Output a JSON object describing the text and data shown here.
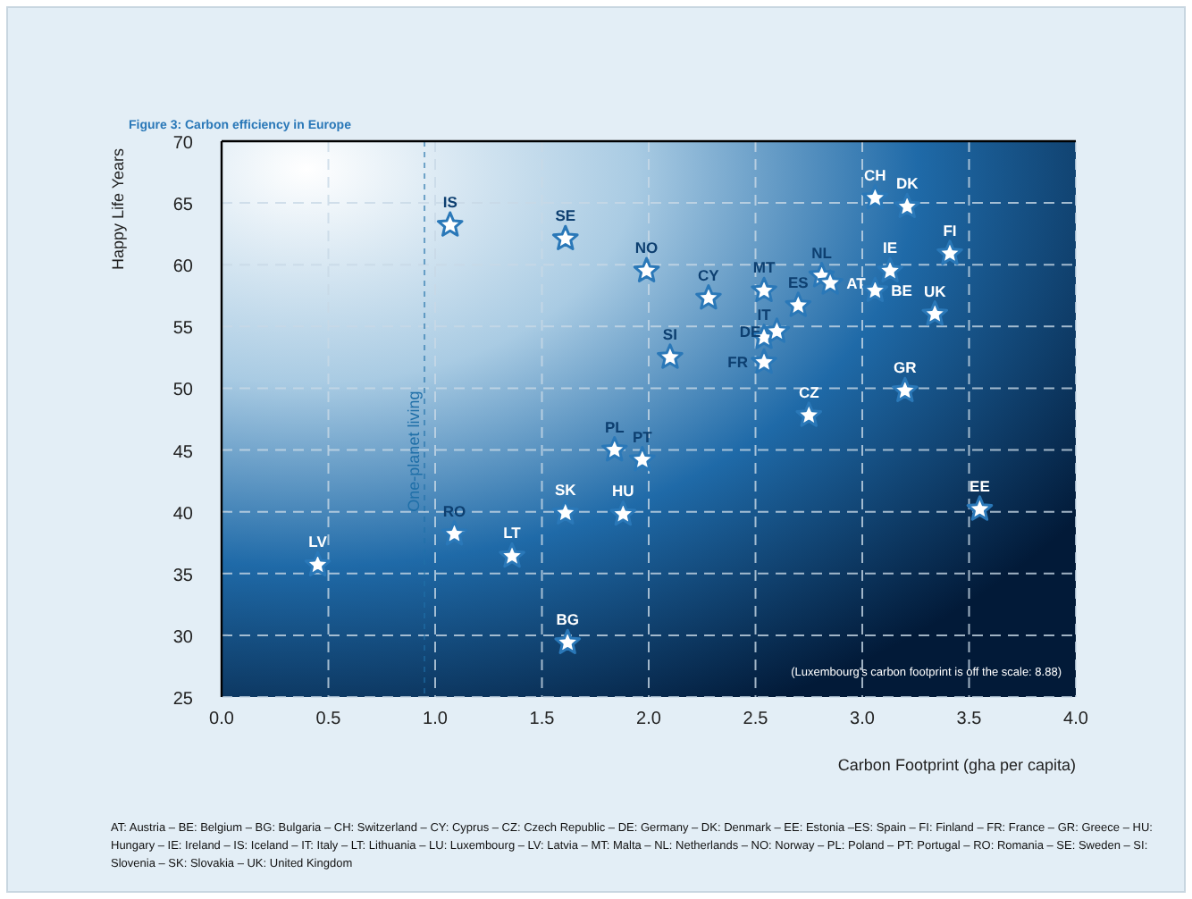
{
  "chart_data": {
    "type": "scatter",
    "title": "Figure 3: Carbon efficiency in Europe",
    "xlabel": "Carbon Footprint (gha per capita)",
    "ylabel": "Happy Life Years",
    "xlim": [
      0,
      4
    ],
    "ylim": [
      25,
      70
    ],
    "xticks": [
      {
        "value": 0,
        "label": "0.0"
      },
      {
        "value": 0.5,
        "label": "0.5"
      },
      {
        "value": 1,
        "label": "1.0"
      },
      {
        "value": 1.5,
        "label": "1.5"
      },
      {
        "value": 2,
        "label": "2.0"
      },
      {
        "value": 2.5,
        "label": "2.5"
      },
      {
        "value": 3,
        "label": "3.0"
      },
      {
        "value": 3.5,
        "label": "3.5"
      },
      {
        "value": 4,
        "label": "4.0"
      }
    ],
    "yticks": [
      25,
      30,
      35,
      40,
      45,
      50,
      55,
      60,
      65,
      70
    ],
    "grid": true,
    "marker": "star",
    "series": [
      {
        "color": "#2a78b8",
        "x": [
          1.07,
          1.61,
          1.99,
          2.28,
          2.54,
          2.7,
          2.81,
          2.85,
          3.06,
          3.13,
          3.06,
          3.21,
          3.41,
          3.34,
          2.54,
          2.6,
          2.54,
          2.1,
          3.2,
          2.75,
          0.45,
          1.09,
          1.36,
          1.61,
          1.62,
          1.84,
          1.88,
          1.97,
          3.55
        ],
        "values": [
          63.2,
          62.1,
          59.5,
          57.3,
          57.9,
          56.7,
          59.1,
          58.5,
          57.9,
          59.5,
          65.4,
          64.7,
          60.9,
          56.0,
          54.1,
          54.6,
          52.1,
          52.5,
          49.8,
          47.8,
          35.7,
          38.2,
          36.4,
          39.9,
          29.4,
          45.0,
          39.8,
          44.2,
          40.2
        ]
      }
    ],
    "ref_lines": [
      {
        "axis": "x",
        "value": 0.95,
        "label": "One-planet living",
        "color": "#1f6fa8",
        "line_style": "dashed"
      }
    ],
    "annotations": [
      {
        "text": "IS",
        "x": 1.07,
        "y": 63.2
      },
      {
        "text": "SE",
        "x": 1.61,
        "y": 62.1
      },
      {
        "text": "NO",
        "x": 1.99,
        "y": 59.5
      },
      {
        "text": "CY",
        "x": 2.28,
        "y": 57.3
      },
      {
        "text": "MT",
        "x": 2.54,
        "y": 57.9
      },
      {
        "text": "ES",
        "x": 2.7,
        "y": 56.7
      },
      {
        "text": "NL",
        "x": 2.81,
        "y": 59.1
      },
      {
        "text": "AT",
        "x": 2.85,
        "y": 58.5
      },
      {
        "text": "BE",
        "x": 3.06,
        "y": 57.9
      },
      {
        "text": "IE",
        "x": 3.13,
        "y": 59.5
      },
      {
        "text": "CH",
        "x": 3.06,
        "y": 65.4
      },
      {
        "text": "DK",
        "x": 3.21,
        "y": 64.7
      },
      {
        "text": "FI",
        "x": 3.41,
        "y": 60.9
      },
      {
        "text": "UK",
        "x": 3.34,
        "y": 56.0
      },
      {
        "text": "IT",
        "x": 2.54,
        "y": 54.1
      },
      {
        "text": "DE",
        "x": 2.6,
        "y": 54.6
      },
      {
        "text": "FR",
        "x": 2.54,
        "y": 52.1
      },
      {
        "text": "SI",
        "x": 2.1,
        "y": 52.5
      },
      {
        "text": "GR",
        "x": 3.2,
        "y": 49.8
      },
      {
        "text": "CZ",
        "x": 2.75,
        "y": 47.8
      },
      {
        "text": "LV",
        "x": 0.45,
        "y": 35.7
      },
      {
        "text": "RO",
        "x": 1.09,
        "y": 38.2
      },
      {
        "text": "LT",
        "x": 1.36,
        "y": 36.4
      },
      {
        "text": "SK",
        "x": 1.61,
        "y": 39.9
      },
      {
        "text": "BG",
        "x": 1.62,
        "y": 29.4
      },
      {
        "text": "PL",
        "x": 1.84,
        "y": 45.0
      },
      {
        "text": "HU",
        "x": 1.88,
        "y": 39.8
      },
      {
        "text": "PT",
        "x": 1.97,
        "y": 44.2
      },
      {
        "text": "EE",
        "x": 3.55,
        "y": 40.2
      },
      "(Luxembourg's carbon footprint is off the scale: 8.88)",
      "AT: Austria – BE: Belgium – BG: Bulgaria – CH: Switzerland – CY: Cyprus – CZ: Czech Republic – DE: Germany – DK: Denmark – EE: Estonia –ES: Spain – FI: Finland – FR: France – GR: Greece – HU: Hungary – IE: Ireland – IS: Iceland – IT: Italy – LT: Lithuania – LU: Luxembourg – LV: Latvia – MT: Malta – NL: Netherlands – NO: Norway – PL: Poland – PT: Portugal – RO: Romania – SE: Sweden – SI: Slovenia – SK: Slovakia – UK: United Kingdom"
    ]
  }
}
